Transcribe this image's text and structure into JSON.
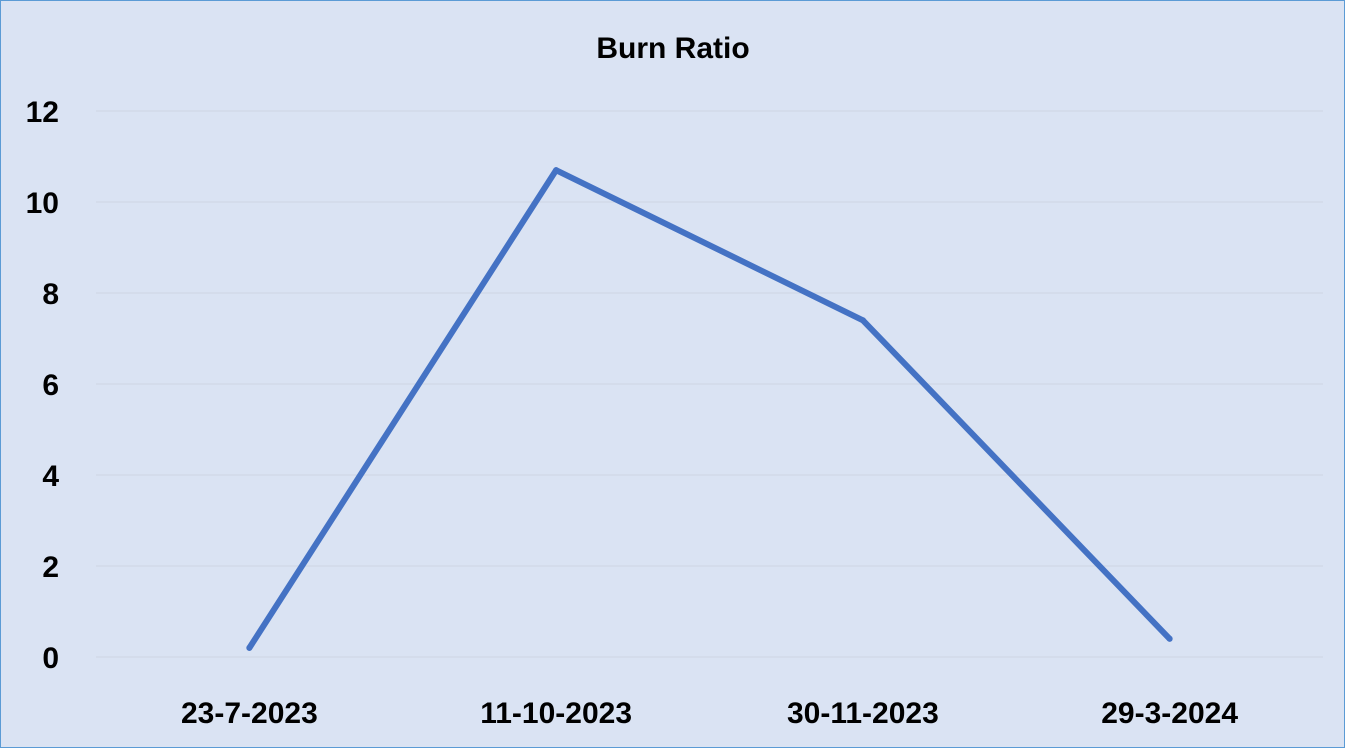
{
  "chart_data": {
    "type": "line",
    "title": "Burn Ratio",
    "xlabel": "",
    "ylabel": "",
    "categories": [
      "23-7-2023",
      "11-10-2023",
      "30-11-2023",
      "29-3-2024"
    ],
    "series": [
      {
        "values": [
          0.2,
          10.7,
          7.4,
          0.4
        ],
        "color": "#4472c4"
      }
    ],
    "y_ticks": [
      "0",
      "2",
      "4",
      "6",
      "8",
      "10",
      "12"
    ],
    "ylim": [
      0,
      12
    ],
    "grid": true,
    "legend": "none"
  },
  "colors": {
    "background": "#dae3f3",
    "border": "#5b9bd5",
    "line": "#4472c4",
    "gridline": "#d0d8e6"
  }
}
